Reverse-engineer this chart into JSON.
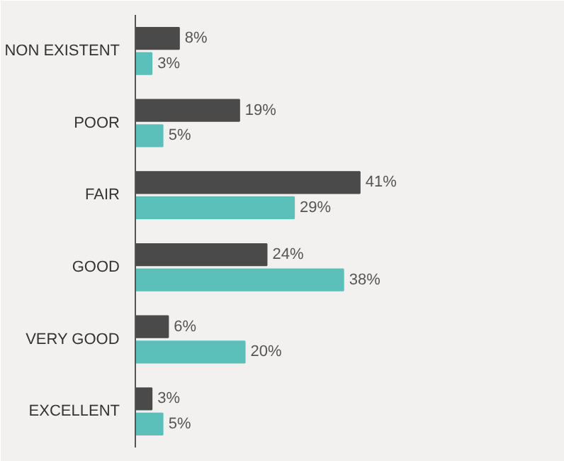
{
  "chart_data": {
    "type": "bar",
    "orientation": "horizontal",
    "categories": [
      "NON EXISTENT",
      "POOR",
      "FAIR",
      "GOOD",
      "VERY GOOD",
      "EXCELLENT"
    ],
    "series": [
      {
        "color": "#4a4a4a",
        "values": [
          8,
          19,
          41,
          24,
          6,
          3
        ],
        "value_labels": [
          "8%",
          "19%",
          "41%",
          "24%",
          "6%",
          "3%"
        ]
      },
      {
        "color": "#5bbfba",
        "values": [
          3,
          5,
          29,
          38,
          20,
          5
        ],
        "value_labels": [
          "3%",
          "5%",
          "29%",
          "38%",
          "20%",
          "5%"
        ]
      }
    ],
    "tick_labels": "y"
  }
}
